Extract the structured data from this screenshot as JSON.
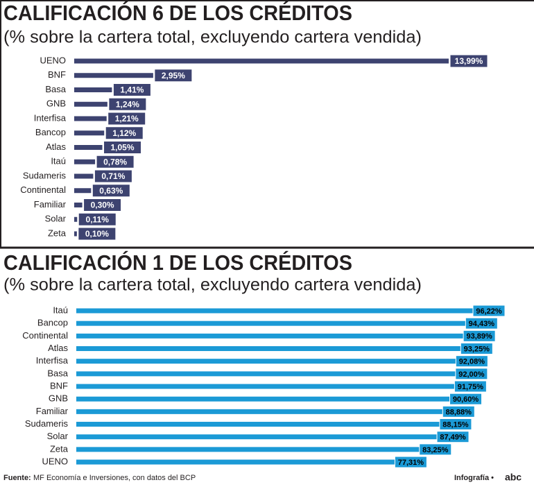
{
  "chart_data": [
    {
      "type": "bar",
      "orientation": "horizontal",
      "title": "CALIFICACIÓN 6 DE LOS CRÉDITOS",
      "subtitle": "(% sobre la cartera total, excluyendo cartera vendida)",
      "categories": [
        "UENO",
        "BNF",
        "Basa",
        "GNB",
        "Interfisa",
        "Bancop",
        "Atlas",
        "Itaú",
        "Sudameris",
        "Continental",
        "Familiar",
        "Solar",
        "Zeta"
      ],
      "values": [
        13.99,
        2.95,
        1.41,
        1.24,
        1.21,
        1.12,
        1.05,
        0.78,
        0.71,
        0.63,
        0.3,
        0.11,
        0.1
      ],
      "value_labels": [
        "13,99%",
        "2,95%",
        "1,41%",
        "1,24%",
        "1,21%",
        "1,12%",
        "1,05%",
        "0,78%",
        "0,71%",
        "0,63%",
        "0,30%",
        "0,11%",
        "0,10%"
      ],
      "color": "#3d4370"
    },
    {
      "type": "bar",
      "orientation": "horizontal",
      "title": "CALIFICACIÓN 1 DE LOS CRÉDITOS",
      "subtitle": "(% sobre la cartera total, excluyendo cartera vendida)",
      "categories": [
        "Itaú",
        "Bancop",
        "Continental",
        "Atlas",
        "Interfisa",
        "Basa",
        "BNF",
        "GNB",
        "Familiar",
        "Sudameris",
        "Solar",
        "Zeta",
        "UENO"
      ],
      "values": [
        96.22,
        94.43,
        93.89,
        93.25,
        92.08,
        92.0,
        91.75,
        90.6,
        88.88,
        88.15,
        87.49,
        83.25,
        77.31
      ],
      "value_labels": [
        "96,22%",
        "94,43%",
        "93,89%",
        "93,25%",
        "92,08%",
        "92,00%",
        "91,75%",
        "90,60%",
        "88,88%",
        "88,15%",
        "87,49%",
        "83,25%",
        "77,31%"
      ],
      "color": "#1b9ad6"
    }
  ],
  "footer": {
    "source_label": "Fuente:",
    "source": "MF Economía e Inversiones, con datos del BCP",
    "credit": "Infografía •",
    "logo": "abc"
  }
}
